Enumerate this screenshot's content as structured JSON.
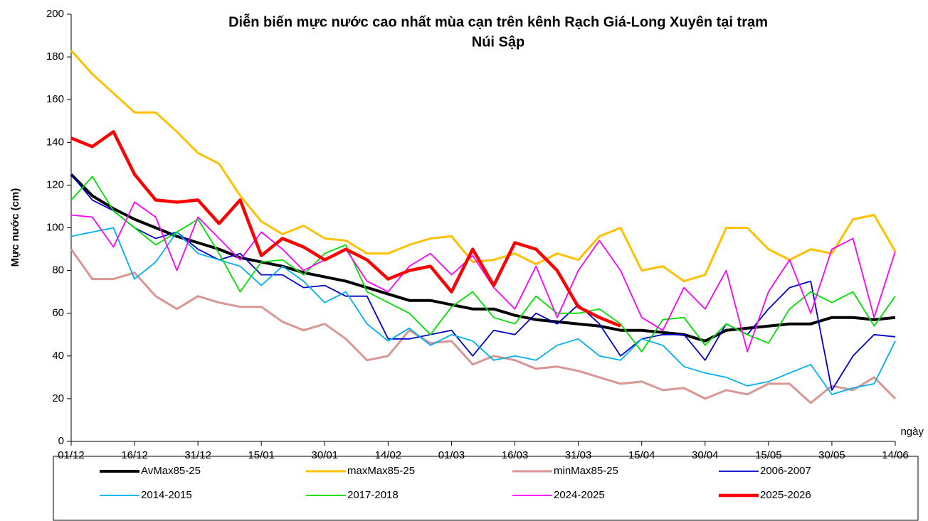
{
  "chart_data": {
    "type": "line",
    "title_lines": [
      "Diễn biến mực nước cao nhất mùa cạn trên kênh Rạch Giá-Long Xuyên tại trạm",
      "Núi Sập"
    ],
    "y_label": "Mực nước (cm)",
    "x_label": "ngày",
    "categories": [
      "01/12",
      null,
      null,
      "16/12",
      null,
      null,
      "31/12",
      null,
      null,
      "15/01",
      null,
      null,
      "30/01",
      null,
      null,
      "14/02",
      null,
      null,
      "01/03",
      null,
      null,
      "16/03",
      null,
      null,
      "31/03",
      null,
      null,
      "15/04",
      null,
      null,
      "30/04",
      null,
      null,
      "15/05",
      null,
      null,
      "30/05",
      null,
      null,
      "14/06"
    ],
    "ylim": [
      0,
      200
    ],
    "yticks": [
      0,
      20,
      40,
      60,
      80,
      100,
      120,
      140,
      160,
      180,
      200
    ],
    "grid": false,
    "legend": "bottom",
    "series": [
      {
        "name": "AvMax85-25",
        "color": "#000000",
        "width": 4,
        "values": [
          125,
          115,
          109,
          104,
          100,
          96,
          93,
          90,
          86,
          84,
          82,
          79,
          77,
          75,
          72,
          69,
          66,
          66,
          64,
          62,
          62,
          59,
          57,
          56,
          55,
          54,
          52,
          52,
          51,
          50,
          47,
          52,
          53,
          54,
          55,
          55,
          58,
          58,
          57,
          58
        ]
      },
      {
        "name": "maxMax85-25",
        "color": "#ffc000",
        "width": 3,
        "values": [
          183,
          172,
          163,
          154,
          154,
          145,
          135,
          130,
          115,
          103,
          97,
          101,
          95,
          94,
          88,
          88,
          92,
          95,
          96,
          84,
          85,
          88,
          83,
          88,
          85,
          96,
          100,
          80,
          82,
          75,
          78,
          100,
          100,
          90,
          85,
          90,
          88,
          104,
          106,
          89
        ]
      },
      {
        "name": "minMax85-25",
        "color": "#d99694",
        "width": 3,
        "values": [
          90,
          76,
          76,
          79,
          68,
          62,
          68,
          65,
          63,
          63,
          56,
          52,
          55,
          48,
          38,
          40,
          52,
          46,
          47,
          36,
          40,
          38,
          34,
          35,
          33,
          30,
          27,
          28,
          24,
          25,
          20,
          24,
          22,
          27,
          27,
          18,
          26,
          24,
          30,
          20
        ]
      },
      {
        "name": "2006-2007",
        "color": "#0000cc",
        "width": 1.8,
        "values": [
          125,
          113,
          108,
          100,
          95,
          98,
          90,
          85,
          88,
          78,
          78,
          72,
          73,
          68,
          68,
          48,
          48,
          50,
          52,
          40,
          52,
          50,
          60,
          55,
          64,
          55,
          40,
          48,
          50,
          50,
          38,
          55,
          50,
          62,
          72,
          75,
          24,
          40,
          50,
          49
        ]
      },
      {
        "name": "2014-2015",
        "color": "#00b0f0",
        "width": 1.8,
        "values": [
          96,
          98,
          100,
          76,
          84,
          98,
          88,
          85,
          82,
          73,
          82,
          75,
          65,
          70,
          55,
          47,
          53,
          45,
          50,
          47,
          38,
          40,
          38,
          45,
          48,
          40,
          38,
          48,
          45,
          35,
          32,
          30,
          26,
          28,
          32,
          36,
          22,
          25,
          27,
          47
        ]
      },
      {
        "name": "2017-2018",
        "color": "#00e000",
        "width": 1.8,
        "values": [
          113,
          124,
          108,
          100,
          92,
          98,
          104,
          88,
          70,
          84,
          85,
          78,
          88,
          92,
          70,
          65,
          60,
          50,
          63,
          70,
          58,
          55,
          68,
          60,
          60,
          62,
          55,
          42,
          57,
          58,
          45,
          55,
          50,
          46,
          62,
          70,
          65,
          70,
          54,
          68
        ]
      },
      {
        "name": "2024-2025",
        "color": "#ff00ff",
        "width": 1.8,
        "values": [
          106,
          105,
          91,
          112,
          105,
          80,
          105,
          95,
          85,
          98,
          90,
          80,
          85,
          90,
          75,
          70,
          82,
          88,
          78,
          87,
          72,
          62,
          82,
          58,
          80,
          94,
          80,
          58,
          52,
          72,
          62,
          80,
          42,
          70,
          85,
          60,
          90,
          95,
          58,
          89
        ]
      },
      {
        "name": "2025-2026",
        "color": "#ff0000",
        "width": 4.5,
        "values": [
          142,
          138,
          145,
          125,
          113,
          112,
          113,
          102,
          113,
          87,
          95,
          91,
          85,
          90,
          85,
          76,
          80,
          82,
          70,
          90,
          73,
          93,
          90,
          80,
          63,
          58,
          54,
          null,
          null,
          null,
          null,
          null,
          null,
          null,
          null,
          null,
          null,
          null,
          null,
          null
        ]
      }
    ]
  }
}
